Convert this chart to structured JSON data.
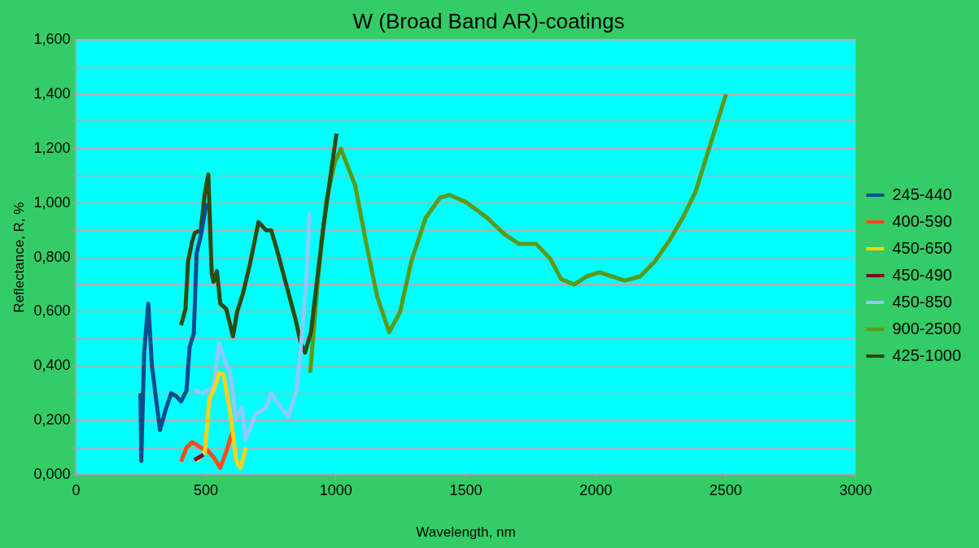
{
  "chart_data": {
    "type": "line",
    "title": "W (Broad Band AR)-coatings",
    "xlabel": "Wavelength, nm",
    "ylabel": "Reflectance, R, %",
    "xlim": [
      0,
      3000
    ],
    "xticks": [
      0,
      500,
      1000,
      1500,
      2000,
      2500,
      3000
    ],
    "ylim": [
      0,
      1.6
    ],
    "yticks": [
      {
        "value": 0,
        "label": "0,000"
      },
      {
        "value": 0.1,
        "label": null
      },
      {
        "value": 0.2,
        "label": "0,200"
      },
      {
        "value": 0.3,
        "label": null
      },
      {
        "value": 0.4,
        "label": "0,400"
      },
      {
        "value": 0.5,
        "label": null
      },
      {
        "value": 0.6,
        "label": "0,600"
      },
      {
        "value": 0.7,
        "label": null
      },
      {
        "value": 0.8,
        "label": "0,800"
      },
      {
        "value": 0.9,
        "label": null
      },
      {
        "value": 1.0,
        "label": "1,000"
      },
      {
        "value": 1.1,
        "label": null
      },
      {
        "value": 1.2,
        "label": "1,200"
      },
      {
        "value": 1.3,
        "label": null
      },
      {
        "value": 1.4,
        "label": "1,400"
      },
      {
        "value": 1.5,
        "label": null
      },
      {
        "value": 1.6,
        "label": "1,600"
      }
    ],
    "grid": "y",
    "legend": "right",
    "marker": "none",
    "line_style": "solid",
    "series": [
      {
        "name": "245-440",
        "color": "#0a4d8c",
        "x": [
          248,
          251,
          262,
          278,
          292,
          323,
          345,
          366,
          385,
          404,
          425,
          437,
          453,
          464,
          480,
          502
        ],
        "values": [
          0.3,
          0.05,
          0.45,
          0.63,
          0.4,
          0.165,
          0.24,
          0.3,
          0.29,
          0.27,
          0.31,
          0.47,
          0.52,
          0.815,
          0.88,
          1.0
        ]
      },
      {
        "name": "400-590",
        "color": "#ff4a1a",
        "x": [
          404,
          425,
          447,
          465,
          480,
          506,
          529,
          555,
          578,
          604
        ],
        "values": [
          0.048,
          0.1,
          0.12,
          0.11,
          0.1,
          0.09,
          0.065,
          0.026,
          0.085,
          0.165
        ]
      },
      {
        "name": "450-650",
        "color": "#ffd21a",
        "x": [
          464,
          496,
          513,
          529,
          551,
          568,
          594,
          617,
          633,
          653
        ],
        "values": [
          0.05,
          0.085,
          0.28,
          0.31,
          0.375,
          0.37,
          0.225,
          0.05,
          0.025,
          0.1
        ]
      },
      {
        "name": "450-490",
        "color": "#7a0a2a",
        "x": [
          455,
          475,
          490
        ],
        "values": [
          0.055,
          0.065,
          0.075
        ]
      },
      {
        "name": "450-850",
        "color": "#8ccaff",
        "x": [
          453,
          486,
          529,
          551,
          572,
          594,
          616,
          638,
          653,
          692,
          731,
          751,
          790,
          816,
          849,
          865,
          888,
          898
        ],
        "values": [
          0.315,
          0.3,
          0.32,
          0.485,
          0.42,
          0.37,
          0.205,
          0.25,
          0.13,
          0.225,
          0.245,
          0.3,
          0.245,
          0.213,
          0.31,
          0.47,
          0.74,
          0.965
        ]
      },
      {
        "name": "900-2500",
        "color": "#5a9a1a",
        "x": [
          901,
          931,
          963,
          996,
          1019,
          1074,
          1117,
          1159,
          1205,
          1247,
          1290,
          1345,
          1401,
          1437,
          1498,
          1583,
          1649,
          1704,
          1770,
          1825,
          1867,
          1916,
          1965,
          2014,
          2063,
          2112,
          2171,
          2227,
          2282,
          2334,
          2383,
          2501
        ],
        "values": [
          0.375,
          0.72,
          1.01,
          1.15,
          1.2,
          1.065,
          0.85,
          0.655,
          0.525,
          0.6,
          0.785,
          0.945,
          1.02,
          1.03,
          1.005,
          0.945,
          0.885,
          0.85,
          0.85,
          0.795,
          0.72,
          0.7,
          0.73,
          0.745,
          0.73,
          0.715,
          0.73,
          0.785,
          0.86,
          0.945,
          1.04,
          1.4
        ]
      },
      {
        "name": "425-1000",
        "color": "#2e4a10",
        "x": [
          404,
          421,
          431,
          447,
          457,
          480,
          496,
          509,
          522,
          529,
          542,
          555,
          578,
          604,
          620,
          643,
          669,
          702,
          731,
          751,
          774,
          806,
          845,
          865,
          881,
          904,
          950,
          1002
        ],
        "values": [
          0.55,
          0.61,
          0.785,
          0.86,
          0.89,
          0.9,
          1.04,
          1.105,
          0.74,
          0.71,
          0.75,
          0.63,
          0.61,
          0.51,
          0.6,
          0.67,
          0.775,
          0.93,
          0.9,
          0.9,
          0.825,
          0.71,
          0.57,
          0.485,
          0.45,
          0.525,
          0.9,
          1.255
        ]
      }
    ]
  }
}
